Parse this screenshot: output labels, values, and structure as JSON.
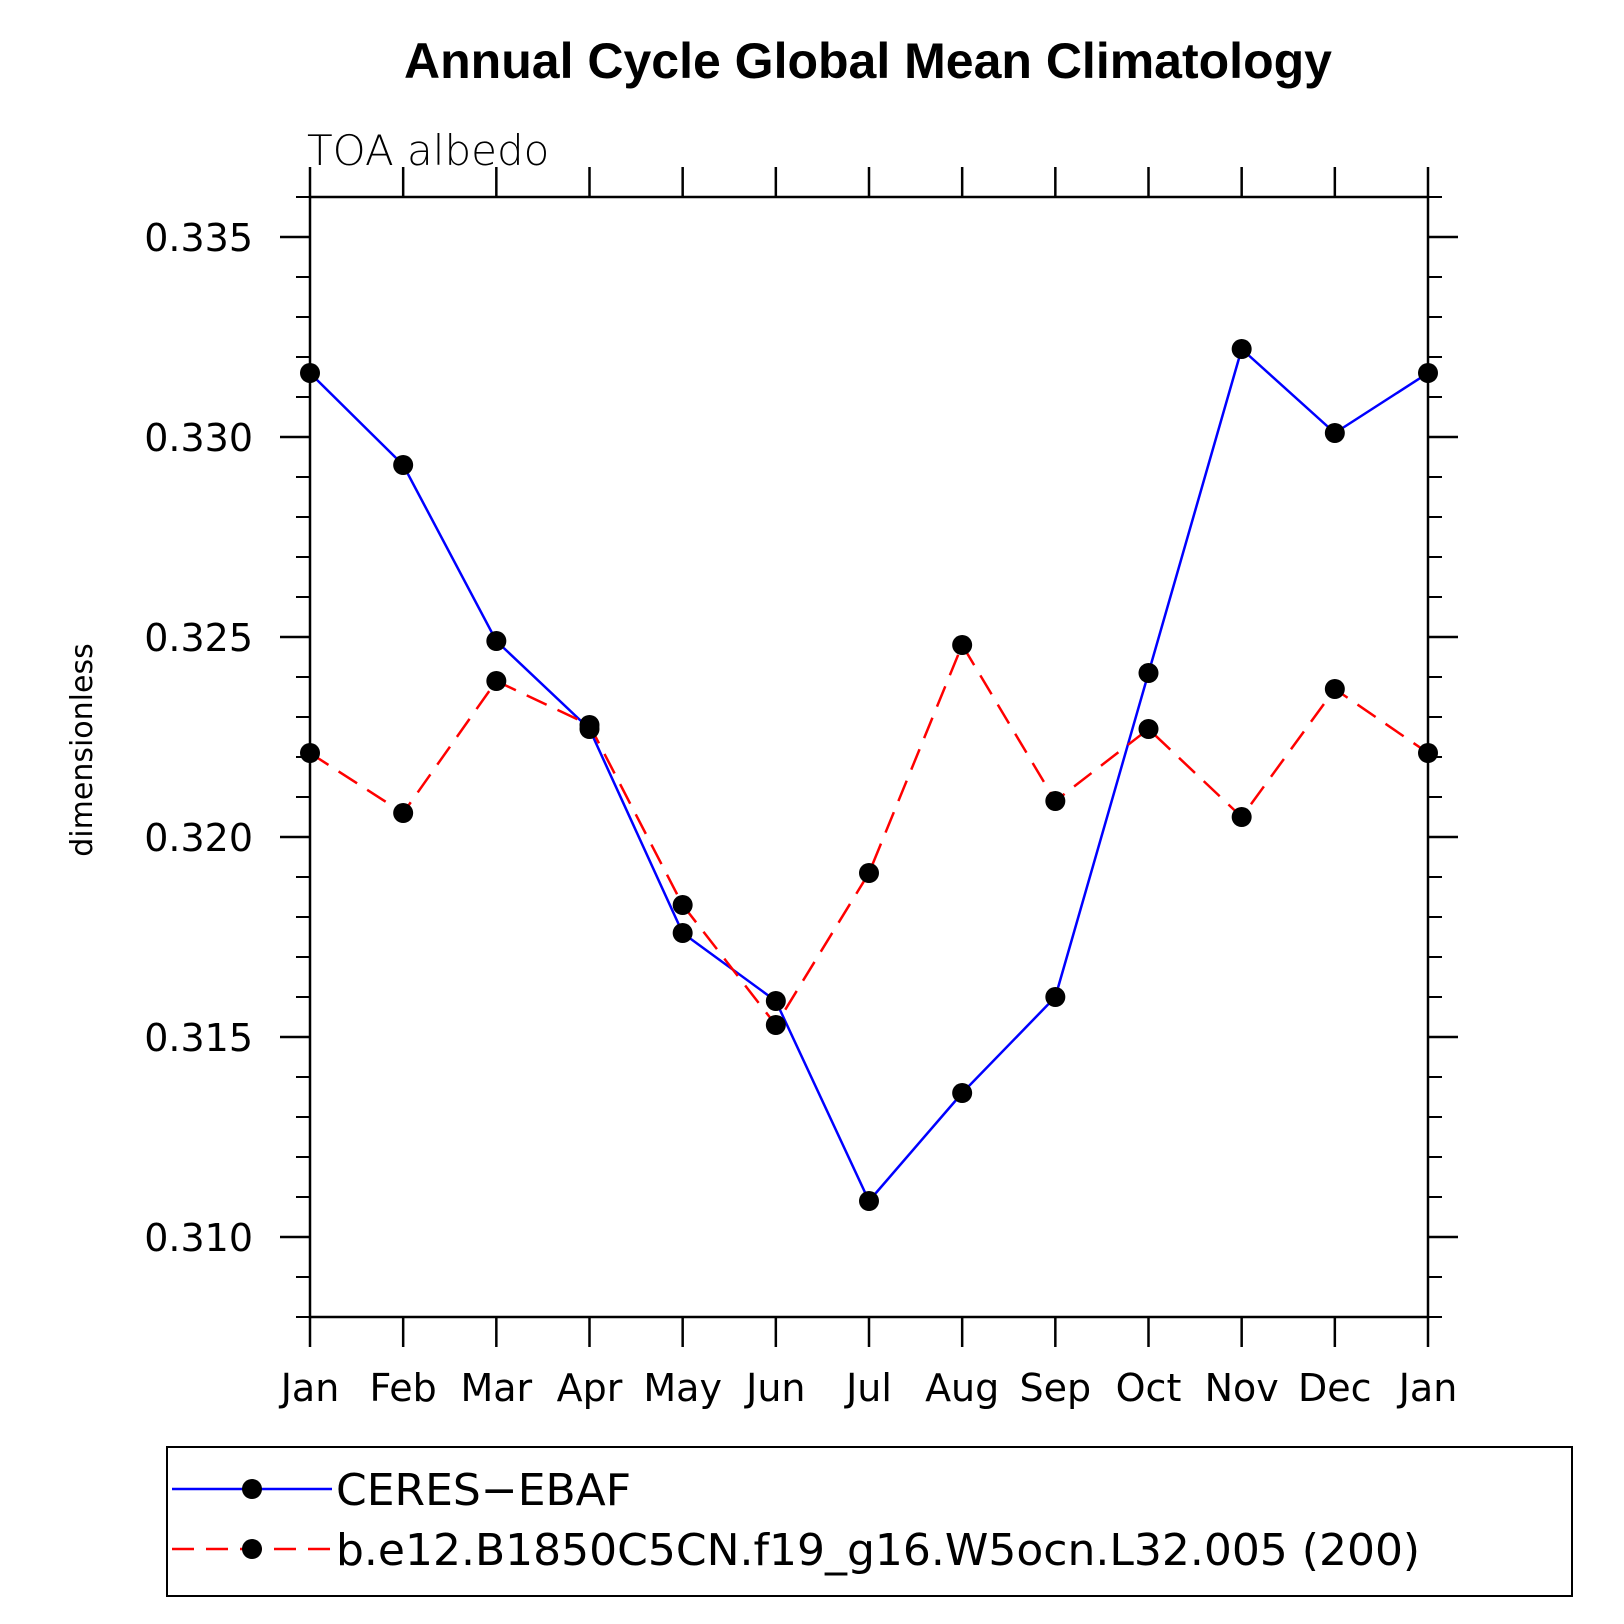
{
  "chart_data": {
    "type": "line",
    "title": "Annual Cycle Global Mean Climatology",
    "subtitle": "TOA albedo",
    "ylabel": "dimensionless",
    "xlabel": "",
    "categories": [
      "Jan",
      "Feb",
      "Mar",
      "Apr",
      "May",
      "Jun",
      "Jul",
      "Aug",
      "Sep",
      "Oct",
      "Nov",
      "Dec",
      "Jan"
    ],
    "ylim": [
      0.308,
      0.336
    ],
    "yticks": [
      "0.310",
      "0.315",
      "0.320",
      "0.325",
      "0.330",
      "0.335"
    ],
    "ytick_values": [
      0.31,
      0.315,
      0.32,
      0.325,
      0.33,
      0.335
    ],
    "minor_tick_step": 0.001,
    "grid": false,
    "legend_position": "bottom",
    "series": [
      {
        "name": "CERES−EBAF",
        "color": "#0000ff",
        "line_style": "solid",
        "marker": "filled-circle",
        "values": [
          0.3316,
          0.3293,
          0.3249,
          0.3227,
          0.3176,
          0.3159,
          0.3109,
          0.3136,
          0.316,
          0.3241,
          0.3322,
          0.3301,
          0.3316
        ]
      },
      {
        "name": "b.e12.B1850C5CN.f19_g16.W5ocn.L32.005 (200)",
        "color": "#ff0000",
        "line_style": "dashed",
        "marker": "filled-circle",
        "values": [
          0.3221,
          0.3206,
          0.3239,
          0.3228,
          0.3183,
          0.3153,
          0.3191,
          0.3248,
          0.3209,
          0.3227,
          0.3205,
          0.3237,
          0.3221
        ]
      }
    ]
  }
}
